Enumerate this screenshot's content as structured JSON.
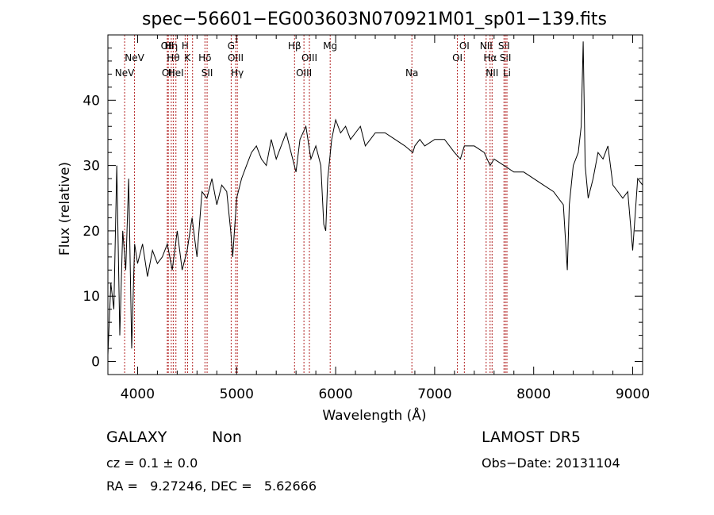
{
  "chart_data": {
    "type": "line",
    "title": "spec−56601−EG003603N070921M01_sp01−139.fits",
    "xlabel": "Wavelength (Å)",
    "ylabel": "Flux (relative)",
    "xlim": [
      3700,
      9100
    ],
    "ylim": [
      -2,
      50
    ],
    "xticks": [
      4000,
      5000,
      6000,
      7000,
      8000,
      9000
    ],
    "yticks": [
      0,
      10,
      20,
      30,
      40
    ],
    "line_color": "#000000",
    "marker_color": "#b22222",
    "series": [
      {
        "x": [
          3700,
          3730,
          3760,
          3790,
          3820,
          3850,
          3880,
          3910,
          3940,
          3970,
          4000,
          4050,
          4100,
          4150,
          4200,
          4250,
          4300,
          4350,
          4400,
          4450,
          4500,
          4550,
          4600,
          4650,
          4700,
          4750,
          4800,
          4850,
          4900,
          4940,
          4960,
          5000,
          5050,
          5100,
          5150,
          5200,
          5250,
          5300,
          5350,
          5400,
          5450,
          5500,
          5550,
          5600,
          5640,
          5700,
          5750,
          5800,
          5850,
          5880,
          5900,
          5920,
          5960,
          6000,
          6050,
          6100,
          6150,
          6200,
          6250,
          6300,
          6350,
          6400,
          6500,
          6600,
          6700,
          6780,
          6800,
          6850,
          6900,
          7000,
          7100,
          7200,
          7260,
          7300,
          7400,
          7500,
          7560,
          7600,
          7700,
          7800,
          7900,
          8000,
          8100,
          8200,
          8300,
          8340,
          8360,
          8400,
          8450,
          8480,
          8500,
          8520,
          8550,
          8600,
          8650,
          8700,
          8750,
          8800,
          8850,
          8900,
          8950,
          9000,
          9050,
          9100
        ],
        "y": [
          1,
          12,
          8,
          30,
          4,
          20,
          14,
          28,
          2,
          18,
          15,
          18,
          13,
          17,
          15,
          16,
          18,
          14,
          20,
          14,
          17,
          22,
          16,
          26,
          25,
          28,
          24,
          27,
          26,
          20,
          16,
          25,
          28,
          30,
          32,
          33,
          31,
          30,
          34,
          31,
          33,
          35,
          32,
          29,
          34,
          36,
          31,
          33,
          30,
          21,
          20,
          28,
          34,
          37,
          35,
          36,
          34,
          35,
          36,
          33,
          34,
          35,
          35,
          34,
          33,
          32,
          33,
          34,
          33,
          34,
          34,
          32,
          31,
          33,
          33,
          32,
          30,
          31,
          30,
          29,
          29,
          28,
          27,
          26,
          24,
          14,
          24,
          30,
          32,
          36,
          49,
          30,
          25,
          28,
          32,
          31,
          33,
          27,
          26,
          25,
          26,
          17,
          28,
          27
        ]
      }
    ],
    "lines": [
      {
        "x": 3869,
        "label": "NeV",
        "row": 2
      },
      {
        "x": 3969,
        "label": "NeV",
        "row": 1
      },
      {
        "x": 4300,
        "label": "OII",
        "row": 0
      },
      {
        "x": 4310,
        "label": "OII",
        "row": 2
      },
      {
        "x": 4340,
        "label": "Hη",
        "row": 0
      },
      {
        "x": 4360,
        "label": "Hθ",
        "row": 1
      },
      {
        "x": 4387,
        "label": "HeI",
        "row": 2
      },
      {
        "x": 4480,
        "label": "H",
        "row": 0
      },
      {
        "x": 4505,
        "label": "K",
        "row": 1
      },
      {
        "x": 4555,
        "label": "",
        "row": 0
      },
      {
        "x": 4680,
        "label": "Hδ",
        "row": 1
      },
      {
        "x": 4702,
        "label": "SII",
        "row": 2
      },
      {
        "x": 4945,
        "label": "G",
        "row": 0
      },
      {
        "x": 4990,
        "label": "OIII",
        "row": 1
      },
      {
        "x": 5007,
        "label": "Hγ",
        "row": 2
      },
      {
        "x": 5585,
        "label": "Hβ",
        "row": 0
      },
      {
        "x": 5680,
        "label": "OIII",
        "row": 2
      },
      {
        "x": 5735,
        "label": "OIII",
        "row": 1
      },
      {
        "x": 5945,
        "label": "Mg",
        "row": 0
      },
      {
        "x": 6770,
        "label": "Na",
        "row": 2
      },
      {
        "x": 7230,
        "label": "OI",
        "row": 1
      },
      {
        "x": 7300,
        "label": "OI",
        "row": 0
      },
      {
        "x": 7520,
        "label": "NII",
        "row": 0
      },
      {
        "x": 7560,
        "label": "Hα",
        "row": 1
      },
      {
        "x": 7580,
        "label": "NII",
        "row": 2
      },
      {
        "x": 7700,
        "label": "SII",
        "row": 0
      },
      {
        "x": 7715,
        "label": "SII",
        "row": 1
      },
      {
        "x": 7730,
        "label": "Li",
        "row": 2
      }
    ]
  },
  "info": {
    "class": "GALAXY",
    "subclass": "Non",
    "cz": "cz = 0.1 ± 0.0",
    "radec": "RA =   9.27246, DEC =   5.62666",
    "survey": "LAMOST DR5",
    "obsdate": "Obs−Date: 20131104"
  }
}
